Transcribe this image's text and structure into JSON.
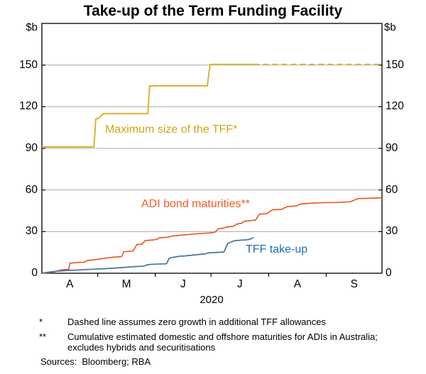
{
  "title": "Take-up of the Term Funding Facility",
  "chart_data": {
    "type": "line",
    "title": "Take-up of the Term Funding Facility",
    "unit_label": "$b",
    "grid": true,
    "x_axis": {
      "year_label": "2020",
      "month_labels": [
        "A",
        "M",
        "J",
        "J",
        "A",
        "S"
      ],
      "month_lengths_days": [
        30,
        31,
        30,
        31,
        31,
        30
      ],
      "domain_days": [
        0,
        183
      ]
    },
    "y_axis": {
      "lim": [
        0,
        180
      ],
      "ticks": [
        0,
        30,
        60,
        90,
        120,
        150
      ]
    },
    "colors": {
      "grid": "#ABABAB",
      "axis": "#000000"
    },
    "series": [
      {
        "name": "max-size-of-tff",
        "label": "Maximum size of the TFF*",
        "color": "#DCB233",
        "label_color": "#D5A419",
        "style": "step, dashed projection after late July",
        "points": [
          [
            0,
            91
          ],
          [
            28,
            91
          ],
          [
            29,
            111
          ],
          [
            31,
            112
          ],
          [
            33,
            115
          ],
          [
            57,
            115
          ],
          [
            58,
            135
          ],
          [
            89,
            135
          ],
          [
            90.5,
            150.5
          ],
          [
            114,
            150.5
          ]
        ],
        "dashed_points": [
          [
            114,
            150.5
          ],
          [
            183,
            150.5
          ]
        ]
      },
      {
        "name": "adi-bond-maturities",
        "label": "ADI bond maturities**",
        "color": "#EB5C25",
        "label_color": "#EB5C25",
        "style": "cumulative line",
        "points": [
          [
            0,
            0
          ],
          [
            3,
            0.4
          ],
          [
            6,
            0.7
          ],
          [
            9,
            1.8
          ],
          [
            11,
            2.5
          ],
          [
            14.5,
            2.8
          ],
          [
            15,
            7.2
          ],
          [
            20,
            7.8
          ],
          [
            23,
            8
          ],
          [
            24,
            9
          ],
          [
            30,
            10
          ],
          [
            31,
            10.3
          ],
          [
            37,
            11.4
          ],
          [
            43,
            12
          ],
          [
            44,
            15.5
          ],
          [
            49,
            16
          ],
          [
            51,
            20.5
          ],
          [
            54,
            21
          ],
          [
            55.5,
            23.5
          ],
          [
            60,
            24
          ],
          [
            62,
            24.5
          ],
          [
            63,
            25.5
          ],
          [
            68,
            26
          ],
          [
            70,
            26.8
          ],
          [
            74,
            27.3
          ],
          [
            82,
            28.3
          ],
          [
            90,
            29
          ],
          [
            93,
            29.5
          ],
          [
            95,
            32
          ],
          [
            98,
            32.5
          ],
          [
            99,
            33.2
          ],
          [
            103,
            33.8
          ],
          [
            105,
            35.5
          ],
          [
            107.5,
            36
          ],
          [
            109,
            37.5
          ],
          [
            115,
            38.3
          ],
          [
            117,
            42.5
          ],
          [
            121,
            43
          ],
          [
            124,
            45.7
          ],
          [
            129,
            46
          ],
          [
            132,
            48
          ],
          [
            137,
            48.5
          ],
          [
            139,
            49.8
          ],
          [
            143,
            50.3
          ],
          [
            150,
            50.8
          ],
          [
            158,
            51
          ],
          [
            166,
            51.5
          ],
          [
            170,
            53.8
          ],
          [
            176,
            54
          ],
          [
            183,
            54.4
          ]
        ]
      },
      {
        "name": "tff-take-up",
        "label": "TFF take-up",
        "color": "#44749A",
        "label_color": "#1F6DB0",
        "style": "cumulative line, ends late July",
        "points": [
          [
            0,
            0
          ],
          [
            4,
            0.8
          ],
          [
            8,
            1.5
          ],
          [
            14,
            2
          ],
          [
            20,
            2.4
          ],
          [
            30,
            3
          ],
          [
            40,
            3.8
          ],
          [
            45,
            4.3
          ],
          [
            55,
            5.2
          ],
          [
            57,
            6.2
          ],
          [
            60,
            6.5
          ],
          [
            67,
            6.8
          ],
          [
            68.5,
            10.8
          ],
          [
            70,
            11.3
          ],
          [
            74,
            12.2
          ],
          [
            77,
            12.5
          ],
          [
            83,
            13.3
          ],
          [
            88,
            14
          ],
          [
            89.5,
            14.6
          ],
          [
            98,
            15.3
          ],
          [
            100,
            21.5
          ],
          [
            101,
            22
          ],
          [
            103.5,
            23.4
          ],
          [
            107,
            23.8
          ],
          [
            111,
            24.2
          ],
          [
            112.5,
            24.8
          ],
          [
            114,
            25.8
          ]
        ]
      }
    ]
  },
  "footnotes": [
    {
      "symbol": "*",
      "text": "Dashed line assumes zero growth in additional TFF allowances"
    },
    {
      "symbol": "**",
      "text": "Cumulative estimated domestic and offshore maturities for ADIs in Australia; excludes hybrids and securitisations"
    }
  ],
  "sources_label": "Sources:",
  "sources_text": "Bloomberg; RBA"
}
